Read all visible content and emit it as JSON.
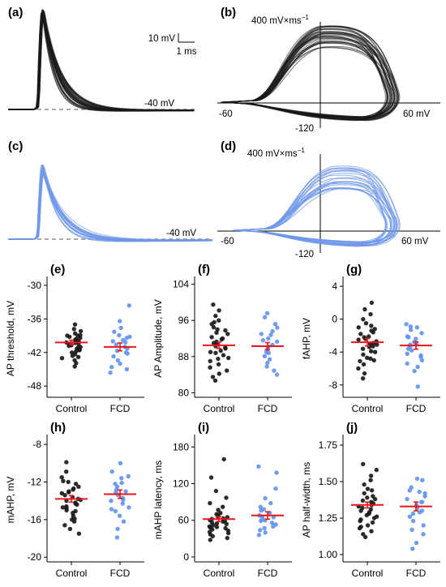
{
  "colors": {
    "control": "#1a1a1a",
    "fcd": "#6495ed",
    "fcd_trace": "#6f97ea",
    "mean": "#e8161c",
    "dashed": "#777777"
  },
  "trace_panels": {
    "a": {
      "label": "(a)",
      "scale_v": "10 mV",
      "scale_t": "1 ms",
      "level": "-40 mV"
    },
    "b": {
      "label": "(b)",
      "rate": "400 mV×ms",
      "rate_exp": "−1",
      "x_left": "-60",
      "x_right": "60 mV",
      "y_bottom": "-120"
    },
    "c": {
      "label": "(c)",
      "level": "-40 mV"
    },
    "d": {
      "label": "(d)",
      "rate": "400 mV×ms",
      "rate_exp": "−1",
      "x_left": "-60",
      "x_right": "60 mV",
      "y_bottom": "-120"
    }
  },
  "chart_data": [
    {
      "panel": "(e)",
      "type": "scatter",
      "ylabel": "AP threshold, mV",
      "categories": [
        "Control",
        "FCD"
      ],
      "ylim": [
        -50,
        -29
      ],
      "yticks": [
        -30,
        -36,
        -42,
        -48
      ],
      "series": [
        {
          "name": "Control",
          "mean": -40.2,
          "sem": 0.4,
          "values": [
            -37.0,
            -37.8,
            -38.2,
            -38.6,
            -39.0,
            -39.2,
            -39.4,
            -39.6,
            -39.8,
            -40.0,
            -40.1,
            -40.2,
            -40.4,
            -40.5,
            -40.7,
            -40.8,
            -41.0,
            -41.1,
            -41.3,
            -41.5,
            -41.8,
            -42.0,
            -42.3,
            -42.6,
            -43.0,
            -43.4,
            -43.9,
            -44.5,
            -39.0,
            -40.3,
            -41.6,
            -38.9,
            -42.8
          ]
        },
        {
          "name": "FCD",
          "mean": -41.0,
          "sem": 0.7,
          "values": [
            -33.6,
            -36.4,
            -37.6,
            -38.3,
            -38.9,
            -39.4,
            -39.8,
            -40.2,
            -40.6,
            -41.0,
            -41.3,
            -41.7,
            -42.2,
            -42.7,
            -43.4,
            -44.0,
            -44.6,
            -45.0,
            -45.6,
            -39.2,
            -40.0,
            -42.0
          ]
        }
      ]
    },
    {
      "panel": "(f)",
      "type": "scatter",
      "ylabel": "AP Amplitude, mV",
      "categories": [
        "Control",
        "FCD"
      ],
      "ylim": [
        79,
        105
      ],
      "yticks": [
        80,
        88,
        96,
        104
      ],
      "series": [
        {
          "name": "Control",
          "mean": 90.5,
          "sem": 0.7,
          "values": [
            99.5,
            98.2,
            97.0,
            96.0,
            95.2,
            94.5,
            93.8,
            93.0,
            92.3,
            91.8,
            91.3,
            90.8,
            90.3,
            89.8,
            89.3,
            88.8,
            88.3,
            87.7,
            87.0,
            86.3,
            85.6,
            84.9,
            84.2,
            83.5,
            82.7,
            91.0,
            90.0,
            92.0,
            89.0,
            93.3,
            87.5,
            94.0,
            95.6
          ]
        },
        {
          "name": "FCD",
          "mean": 90.3,
          "sem": 0.8,
          "values": [
            97.6,
            96.7,
            95.2,
            94.4,
            93.6,
            92.8,
            92.0,
            91.3,
            90.6,
            90.0,
            89.4,
            88.8,
            88.1,
            87.4,
            86.6,
            85.8,
            84.9,
            84.0,
            91.6,
            90.2,
            89.0,
            93.0
          ]
        }
      ]
    },
    {
      "panel": "(g)",
      "type": "scatter",
      "ylabel": "fAHP, mV",
      "categories": [
        "Control",
        "FCD"
      ],
      "ylim": [
        -9.5,
        4.8
      ],
      "yticks": [
        4,
        0,
        -4,
        -8
      ],
      "series": [
        {
          "name": "Control",
          "mean": -2.8,
          "sem": 0.45,
          "values": [
            2.0,
            1.2,
            0.6,
            0.0,
            -0.5,
            -1.0,
            -1.4,
            -1.8,
            -2.1,
            -2.4,
            -2.7,
            -3.0,
            -3.3,
            -3.6,
            -3.9,
            -4.3,
            -4.7,
            -5.1,
            -5.5,
            -6.0,
            -6.6,
            -7.2,
            -2.2,
            -2.9,
            -3.4,
            -1.6,
            -4.0,
            -0.8,
            -5.0,
            -2.5,
            -3.1,
            -1.2,
            -4.8
          ]
        },
        {
          "name": "FCD",
          "mean": -3.2,
          "sem": 0.45,
          "values": [
            -0.6,
            -0.9,
            -1.3,
            -1.7,
            -2.1,
            -2.4,
            -2.8,
            -3.1,
            -3.4,
            -3.8,
            -4.2,
            -4.6,
            -5.0,
            -5.4,
            -5.8,
            -6.3,
            -8.2,
            -2.2,
            -3.0,
            -3.6,
            -4.4,
            -1.0
          ]
        }
      ]
    },
    {
      "panel": "(h)",
      "type": "scatter",
      "ylabel": "mAHP, mV",
      "categories": [
        "Control",
        "FCD"
      ],
      "ylim": [
        -20.5,
        -7.3
      ],
      "yticks": [
        -8,
        -12,
        -16,
        -20
      ],
      "series": [
        {
          "name": "Control",
          "mean": -13.8,
          "sem": 0.35,
          "values": [
            -9.9,
            -10.9,
            -11.5,
            -11.9,
            -12.2,
            -12.5,
            -12.8,
            -13.0,
            -13.2,
            -13.4,
            -13.6,
            -13.8,
            -14.0,
            -14.2,
            -14.4,
            -14.6,
            -14.8,
            -15.0,
            -15.3,
            -15.6,
            -15.9,
            -16.2,
            -16.6,
            -17.0,
            -17.5,
            -13.1,
            -13.9,
            -14.3,
            -12.7,
            -15.1,
            -16.0,
            -12.0,
            -14.7
          ]
        },
        {
          "name": "FCD",
          "mean": -13.3,
          "sem": 0.45,
          "values": [
            -10.0,
            -10.9,
            -11.6,
            -12.1,
            -12.5,
            -12.8,
            -13.1,
            -13.4,
            -13.7,
            -14.0,
            -14.3,
            -14.7,
            -15.1,
            -15.6,
            -16.2,
            -17.0,
            -17.9,
            -12.2,
            -13.0,
            -13.9,
            -14.9,
            -11.4
          ]
        }
      ]
    },
    {
      "panel": "(i)",
      "type": "scatter",
      "ylabel": "mAHP latency, ms",
      "categories": [
        "Control",
        "FCD"
      ],
      "ylim": [
        -8,
        195
      ],
      "yticks": [
        0,
        60,
        120,
        180
      ],
      "series": [
        {
          "name": "Control",
          "mean": 62,
          "sem": 4,
          "values": [
            160,
            130,
            108,
            97,
            88,
            82,
            77,
            72,
            68,
            65,
            62,
            60,
            58,
            56,
            54,
            52,
            50,
            49,
            47,
            45,
            43,
            41,
            39,
            37,
            34,
            31,
            28,
            63,
            55,
            70,
            48,
            59,
            66
          ]
        },
        {
          "name": "FCD",
          "mean": 68,
          "sem": 6,
          "values": [
            148,
            138,
            112,
            96,
            88,
            82,
            76,
            72,
            68,
            65,
            62,
            59,
            56,
            53,
            50,
            47,
            44,
            40,
            36,
            66,
            60,
            78
          ]
        }
      ]
    },
    {
      "panel": "(j)",
      "type": "scatter",
      "ylabel": "AP half-width, ms",
      "categories": [
        "Control",
        "FCD"
      ],
      "ylim": [
        0.95,
        1.8
      ],
      "yticks": [
        1.0,
        1.25,
        1.5,
        1.75
      ],
      "series": [
        {
          "name": "Control",
          "mean": 1.34,
          "sem": 0.02,
          "values": [
            1.62,
            1.58,
            1.54,
            1.51,
            1.48,
            1.45,
            1.42,
            1.4,
            1.38,
            1.36,
            1.34,
            1.32,
            1.3,
            1.28,
            1.26,
            1.24,
            1.22,
            1.2,
            1.18,
            1.16,
            1.14,
            1.12,
            1.35,
            1.31,
            1.27,
            1.39,
            1.23,
            1.44,
            1.19,
            1.33,
            1.29,
            1.37,
            1.25
          ]
        },
        {
          "name": "FCD",
          "mean": 1.33,
          "sem": 0.03,
          "values": [
            1.52,
            1.51,
            1.46,
            1.44,
            1.42,
            1.4,
            1.38,
            1.36,
            1.34,
            1.32,
            1.3,
            1.28,
            1.26,
            1.23,
            1.2,
            1.17,
            1.14,
            1.08,
            1.04,
            1.36,
            1.29,
            1.43
          ]
        }
      ]
    }
  ]
}
